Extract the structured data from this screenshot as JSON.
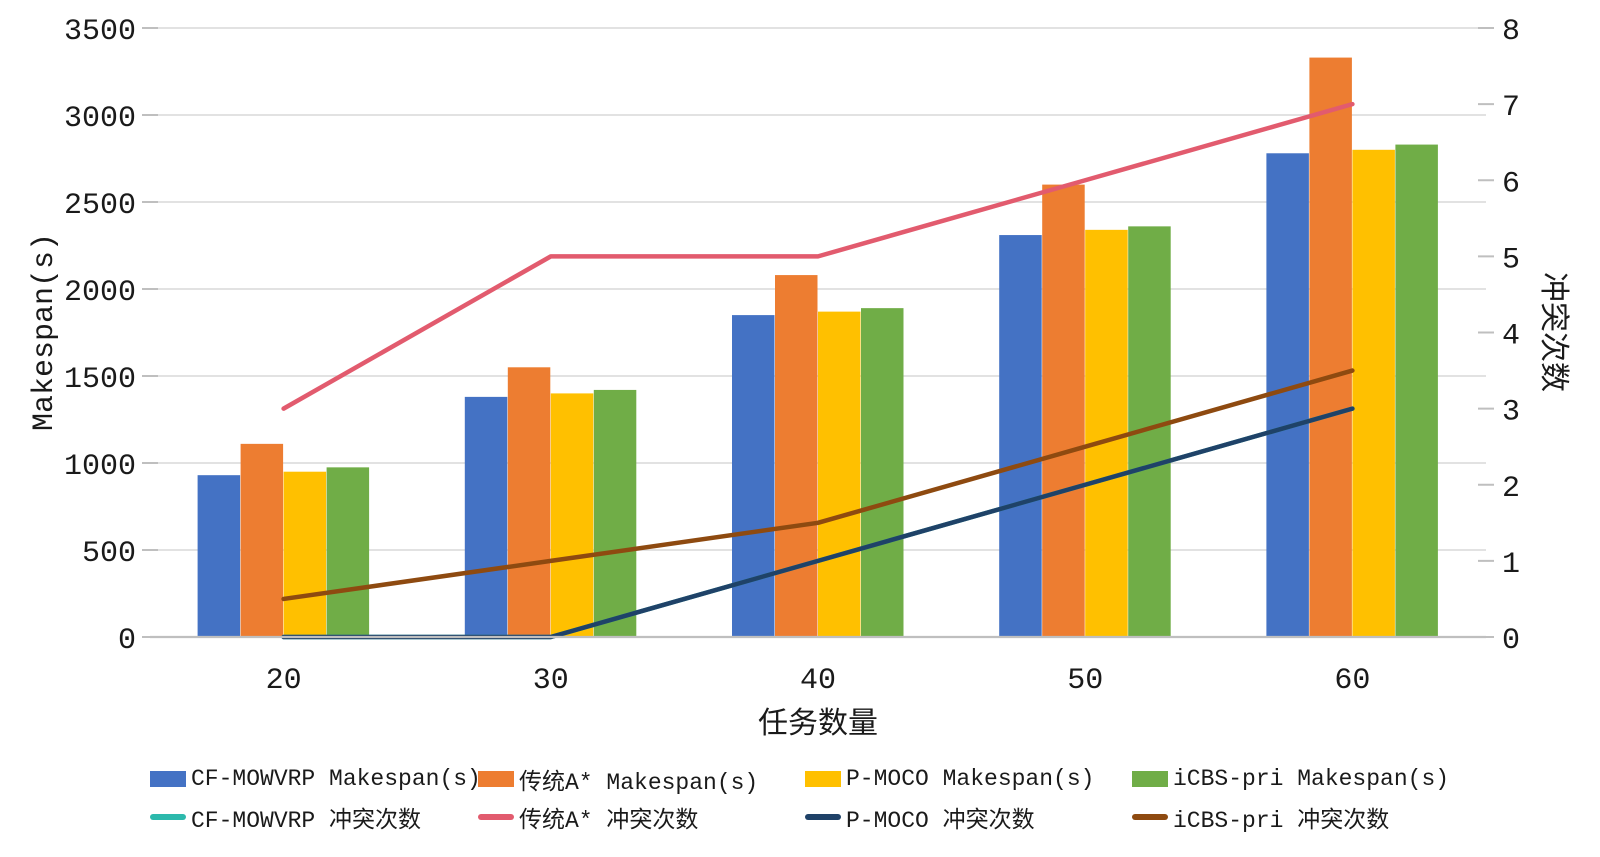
{
  "chart_data": {
    "type": "bar",
    "subtype": "combo-bar-line-dual-axis",
    "title": "",
    "categories": [
      "20",
      "30",
      "40",
      "50",
      "60"
    ],
    "bar_series": [
      {
        "name": "CF-MOWVRP Makespan(s)",
        "color": "#4472C4",
        "axis": "left",
        "values": [
          930,
          1380,
          1850,
          2310,
          2780
        ]
      },
      {
        "name": "传统A* Makespan(s)",
        "color": "#ED7D31",
        "axis": "left",
        "values": [
          1110,
          1550,
          2080,
          2600,
          3330
        ]
      },
      {
        "name": "P-MOCO Makespan(s)",
        "color": "#FFC000",
        "axis": "left",
        "values": [
          950,
          1400,
          1870,
          2340,
          2800
        ]
      },
      {
        "name": "iCBS-pri Makespan(s)",
        "color": "#70AD47",
        "axis": "left",
        "values": [
          975,
          1420,
          1890,
          2360,
          2830
        ]
      }
    ],
    "line_series": [
      {
        "name": "CF-MOWVRP 冲突次数",
        "color": "#2CB9AC",
        "axis": "right",
        "values": [
          0,
          0,
          1,
          2,
          3
        ]
      },
      {
        "name": "传统A* 冲突次数",
        "color": "#E25B6E",
        "axis": "right",
        "values": [
          3,
          5,
          5,
          6,
          7
        ]
      },
      {
        "name": "P-MOCO 冲突次数",
        "color": "#1F4268",
        "axis": "right",
        "values": [
          0,
          0,
          1,
          2,
          3
        ]
      },
      {
        "name": "iCBS-pri 冲突次数",
        "color": "#8E4A10",
        "axis": "right",
        "values": [
          0.5,
          1,
          1.5,
          2.5,
          3.5
        ]
      }
    ],
    "xlabel": "任务数量",
    "ylabel": "Makespan(s)",
    "y2label": "冲突次数",
    "ylim": [
      0,
      3500
    ],
    "y_ticks": [
      0,
      500,
      1000,
      1500,
      2000,
      2500,
      3000,
      3500
    ],
    "y2lim": [
      0,
      8
    ],
    "y2_ticks": [
      0,
      1,
      2,
      3,
      4,
      5,
      6,
      7,
      8
    ],
    "grid": true,
    "legend_position": "bottom",
    "colors": {
      "gridline": "#D9D9D9",
      "axis_line": "#BFBFBF",
      "text": "#1a1a1a",
      "background": "#FFFFFF"
    }
  }
}
